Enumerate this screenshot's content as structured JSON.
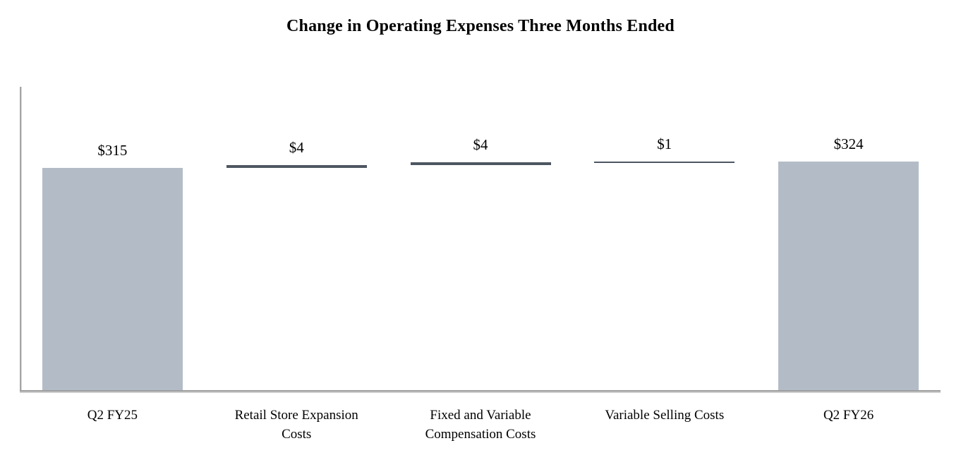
{
  "chart_data": {
    "type": "bar",
    "subtype": "waterfall",
    "title": "Change in Operating Expenses Three Months Ended",
    "categories": [
      "Q2 FY25",
      "Retail Store Expansion Costs",
      "Fixed and Variable Compensation Costs",
      "Variable Selling Costs",
      "Q2 FY26"
    ],
    "category_lines": [
      "Q2 FY25",
      "Retail Store Expansion\nCosts",
      "Fixed and Variable\nCompensation Costs",
      "Variable Selling Costs",
      "Q2 FY26"
    ],
    "values": [
      315,
      4,
      4,
      1,
      324
    ],
    "data_labels": [
      "$315",
      "$4",
      "$4",
      "$1",
      "$324"
    ],
    "bar_roles": [
      "total",
      "delta",
      "delta",
      "delta",
      "total"
    ],
    "cumulative": [
      [
        0,
        315
      ],
      [
        315,
        319
      ],
      [
        319,
        323
      ],
      [
        323,
        324
      ],
      [
        0,
        324
      ]
    ],
    "baseline_value": 0,
    "gridlines": false,
    "legend": "none",
    "y_axis_tick_labels": "none",
    "colors": {
      "total_bar": "#b3bcc6",
      "delta_bar": "#4d5661",
      "axis_line": "#a6a6a6",
      "text": "#000000",
      "background": "#ffffff"
    }
  }
}
